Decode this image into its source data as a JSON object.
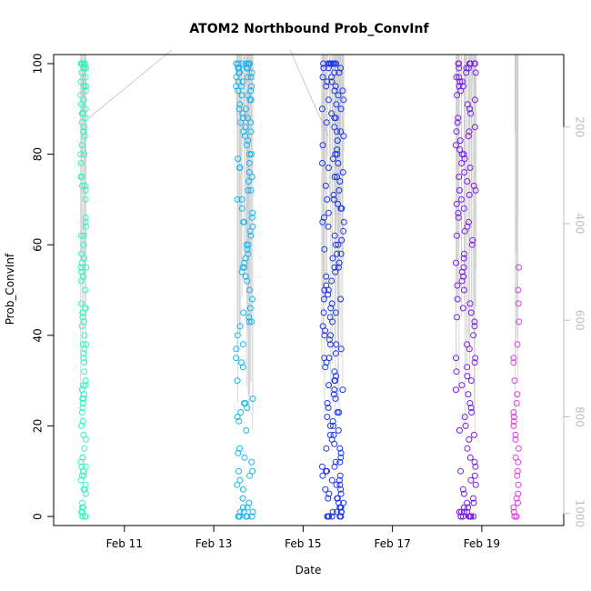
{
  "chart_data": {
    "type": "scatter",
    "title": "ATOM2 Northbound Prob_ConvInf",
    "xlabel": "Date",
    "ylabel": "Prob_ConvInf",
    "xlim": [
      "2024-02-09 10:00",
      "2024-02-20 20:00"
    ],
    "ylim": [
      -2,
      102
    ],
    "x_ticks": [
      {
        "label": "Feb 11",
        "value": "2024-02-11"
      },
      {
        "label": "Feb 13",
        "value": "2024-02-13"
      },
      {
        "label": "Feb 15",
        "value": "2024-02-15"
      },
      {
        "label": "Feb 17",
        "value": "2024-02-17"
      },
      {
        "label": "Feb 19",
        "value": "2024-02-19"
      }
    ],
    "y_ticks": [
      0,
      20,
      40,
      60,
      80,
      100
    ],
    "right_axis": {
      "label": "",
      "ticks": [
        200,
        400,
        600,
        800,
        1000
      ],
      "range_top_to_bottom": [
        50,
        1025
      ],
      "color": "#bdbdbd"
    },
    "grid": false,
    "series": [
      {
        "color": "#2ef7c2",
        "x_range": [
          "2024-02-10 00:30",
          "2024-02-10 03:30"
        ],
        "values": [
          0,
          0,
          0,
          0,
          0,
          1,
          1,
          2,
          2,
          3,
          5,
          6,
          6,
          7,
          8,
          9,
          9,
          10,
          10,
          11,
          11,
          12,
          13,
          13,
          15,
          17,
          18,
          20,
          21,
          23,
          24,
          25,
          26,
          26,
          27,
          28,
          29,
          29,
          30,
          32,
          34,
          35,
          36,
          37,
          38,
          38,
          40,
          42,
          43,
          44,
          45,
          45,
          46,
          46,
          47,
          50,
          52,
          53,
          54,
          55,
          55,
          56,
          57,
          58,
          60,
          62,
          62,
          64,
          65,
          66,
          70,
          72,
          73,
          73,
          75,
          75,
          78,
          80,
          80,
          82,
          84,
          85,
          86,
          87,
          88,
          89,
          89,
          90,
          91,
          92,
          93,
          94,
          95,
          95,
          96,
          97,
          98,
          99,
          99,
          99,
          100,
          100,
          100,
          100,
          100,
          100
        ]
      },
      {
        "color": "#12b6f2",
        "x_range": [
          "2024-02-13 12:00",
          "2024-02-13 21:00"
        ],
        "values": [
          0,
          0,
          0,
          0,
          0,
          0,
          1,
          1,
          1,
          2,
          2,
          3,
          4,
          6,
          7,
          8,
          9,
          10,
          10,
          12,
          13,
          14,
          15,
          19,
          21,
          22,
          23,
          24,
          25,
          25,
          26,
          30,
          33,
          34,
          35,
          37,
          38,
          40,
          42,
          43,
          43,
          44,
          45,
          46,
          48,
          50,
          52,
          53,
          54,
          55,
          55,
          56,
          57,
          58,
          59,
          60,
          60,
          62,
          63,
          64,
          65,
          65,
          66,
          67,
          68,
          70,
          70,
          72,
          72,
          74,
          75,
          76,
          77,
          77,
          78,
          79,
          80,
          80,
          82,
          83,
          84,
          85,
          85,
          86,
          87,
          87,
          88,
          88,
          89,
          90,
          90,
          91,
          92,
          92,
          93,
          93,
          94,
          94,
          95,
          95,
          95,
          96,
          96,
          97,
          97,
          97,
          98,
          98,
          98,
          99,
          99,
          99,
          99,
          100,
          100,
          100,
          100,
          100,
          100,
          100
        ]
      },
      {
        "color": "#1c36e8",
        "x_range": [
          "2024-02-15 10:00",
          "2024-02-15 22:00"
        ],
        "values": [
          0,
          0,
          0,
          0,
          0,
          0,
          0,
          1,
          1,
          1,
          1,
          2,
          2,
          2,
          3,
          3,
          4,
          4,
          4,
          5,
          5,
          6,
          6,
          7,
          7,
          8,
          8,
          9,
          9,
          10,
          10,
          11,
          11,
          12,
          12,
          13,
          14,
          15,
          15,
          16,
          17,
          18,
          18,
          19,
          20,
          20,
          21,
          22,
          23,
          23,
          24,
          25,
          26,
          27,
          28,
          28,
          29,
          30,
          30,
          31,
          32,
          33,
          34,
          35,
          35,
          36,
          37,
          38,
          38,
          39,
          40,
          40,
          41,
          42,
          43,
          44,
          45,
          45,
          46,
          47,
          48,
          48,
          49,
          50,
          50,
          51,
          52,
          53,
          54,
          55,
          55,
          56,
          57,
          58,
          58,
          59,
          60,
          60,
          61,
          62,
          63,
          64,
          65,
          65,
          66,
          67,
          68,
          68,
          69,
          70,
          70,
          71,
          72,
          73,
          74,
          75,
          75,
          76,
          77,
          78,
          78,
          79,
          80,
          80,
          81,
          82,
          83,
          84,
          85,
          85,
          86,
          87,
          88,
          88,
          89,
          90,
          90,
          91,
          92,
          92,
          93,
          94,
          94,
          95,
          95,
          96,
          96,
          97,
          97,
          98,
          98,
          99,
          99,
          99,
          100,
          100,
          100,
          100,
          100,
          100,
          100,
          100,
          100,
          100,
          100,
          100
        ]
      },
      {
        "color": "#7a1ce8",
        "x_range": [
          "2024-02-18 10:00",
          "2024-02-18 21:00"
        ],
        "values": [
          0,
          0,
          0,
          0,
          0,
          0,
          0,
          0,
          1,
          1,
          1,
          1,
          2,
          2,
          3,
          3,
          4,
          5,
          6,
          7,
          8,
          9,
          10,
          11,
          12,
          13,
          15,
          17,
          18,
          19,
          20,
          22,
          23,
          24,
          25,
          27,
          28,
          29,
          30,
          31,
          32,
          33,
          34,
          35,
          35,
          37,
          38,
          40,
          42,
          43,
          44,
          45,
          46,
          47,
          48,
          50,
          51,
          52,
          53,
          54,
          55,
          56,
          57,
          58,
          60,
          61,
          62,
          63,
          64,
          65,
          66,
          67,
          68,
          69,
          70,
          71,
          72,
          72,
          73,
          74,
          75,
          76,
          77,
          78,
          79,
          80,
          80,
          81,
          82,
          83,
          84,
          85,
          85,
          86,
          87,
          88,
          89,
          90,
          90,
          91,
          92,
          93,
          94,
          95,
          95,
          96,
          96,
          97,
          97,
          98,
          98,
          99,
          99,
          99,
          100,
          100,
          100,
          100,
          100,
          100,
          100
        ]
      },
      {
        "color": "#e03ce8",
        "x_range": [
          "2024-02-19 17:00",
          "2024-02-19 20:00"
        ],
        "values": [
          0,
          0,
          0,
          1,
          2,
          3,
          4,
          5,
          7,
          9,
          10,
          12,
          13,
          15,
          17,
          18,
          20,
          21,
          22,
          23,
          25,
          27,
          30,
          34,
          35,
          38,
          43,
          47,
          50,
          55
        ]
      }
    ]
  }
}
